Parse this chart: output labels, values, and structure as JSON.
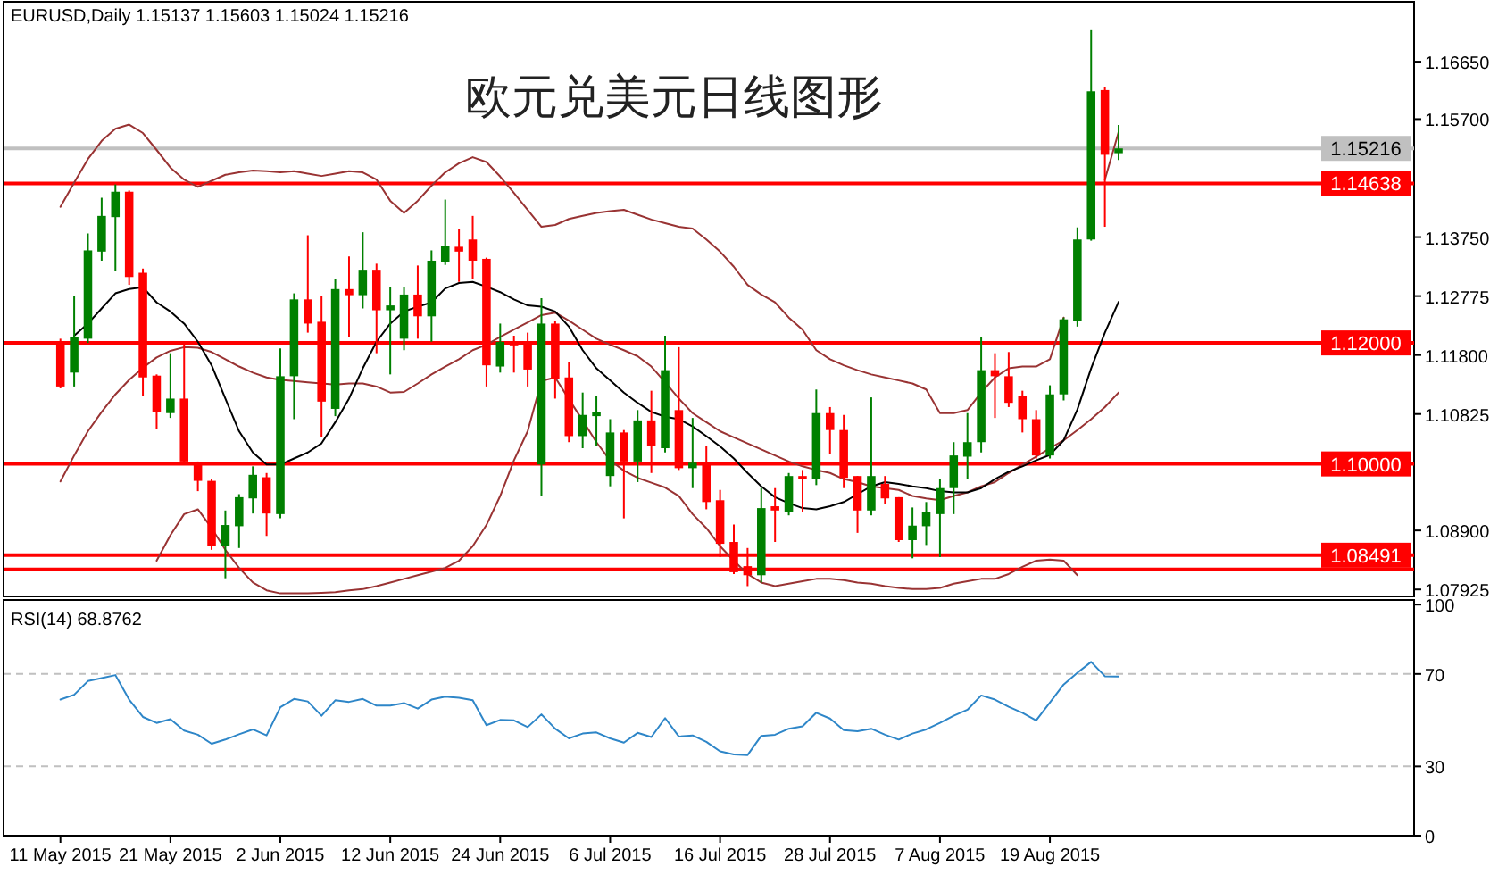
{
  "chart_data": [
    {
      "type": "candlestick",
      "title": "欧元兑美元日线图形",
      "subtitle": "EURUSD,Daily 1.15137 1.15603 1.15024 1.15216",
      "tick_labels": "y",
      "categories": [
        null,
        null,
        null,
        null,
        null,
        null,
        null,
        null,
        null,
        null,
        null,
        null,
        null,
        null,
        null,
        null,
        null,
        null,
        null,
        null,
        null,
        null,
        null,
        null,
        null,
        null,
        null,
        null,
        null,
        null,
        null,
        null,
        null,
        null,
        null,
        null,
        null,
        null,
        null,
        null,
        null,
        null,
        null,
        null,
        null,
        null,
        null,
        null,
        null,
        null,
        null,
        null,
        null,
        null,
        null,
        null,
        null,
        null,
        null,
        null,
        null,
        null,
        null,
        null,
        null,
        null,
        null,
        null,
        null,
        null,
        null,
        null,
        null,
        null,
        null,
        null,
        null,
        null
      ],
      "ohlc": [
        [
          1.1202,
          1.1207,
          1.1125,
          1.1128
        ],
        [
          1.1151,
          1.1277,
          1.1128,
          1.121
        ],
        [
          1.1207,
          1.1381,
          1.12,
          1.1353
        ],
        [
          1.1351,
          1.144,
          1.1336,
          1.141
        ],
        [
          1.1408,
          1.1462,
          1.1319,
          1.145
        ],
        [
          1.145,
          1.1452,
          1.1296,
          1.1309
        ],
        [
          1.1316,
          1.1323,
          1.1113,
          1.1143
        ],
        [
          1.1146,
          1.1148,
          1.1058,
          1.1086
        ],
        [
          1.1084,
          1.1183,
          1.1076,
          1.1108
        ],
        [
          1.1108,
          1.1202,
          1.1002,
          1.1004
        ],
        [
          1.0999,
          1.1004,
          1.0955,
          1.0972
        ],
        [
          1.0972,
          1.0975,
          1.0858,
          1.0864
        ],
        [
          1.0864,
          1.0923,
          1.0811,
          1.0899
        ],
        [
          1.0897,
          1.095,
          1.0861,
          1.0945
        ],
        [
          1.0943,
          1.0996,
          1.0918,
          1.0982
        ],
        [
          1.0978,
          1.0985,
          1.0881,
          1.0918
        ],
        [
          1.0917,
          1.1191,
          1.091,
          1.1145
        ],
        [
          1.1145,
          1.1282,
          1.1074,
          1.1272
        ],
        [
          1.1272,
          1.1378,
          1.1217,
          1.1232
        ],
        [
          1.1235,
          1.1277,
          1.1044,
          1.1103
        ],
        [
          1.1091,
          1.1306,
          1.1079,
          1.1289
        ],
        [
          1.1289,
          1.1343,
          1.121,
          1.1279
        ],
        [
          1.1279,
          1.1383,
          1.1257,
          1.1321
        ],
        [
          1.1321,
          1.1331,
          1.1183,
          1.1254
        ],
        [
          1.1254,
          1.1293,
          1.1148,
          1.1262
        ],
        [
          1.1207,
          1.1292,
          1.1188,
          1.128
        ],
        [
          1.128,
          1.1328,
          1.1207,
          1.1244
        ],
        [
          1.1244,
          1.1353,
          1.1202,
          1.1336
        ],
        [
          1.1334,
          1.1437,
          1.1329,
          1.1361
        ],
        [
          1.1359,
          1.1389,
          1.1301,
          1.1351
        ],
        [
          1.1371,
          1.141,
          1.1306,
          1.1336
        ],
        [
          1.1339,
          1.1341,
          1.1128,
          1.1163
        ],
        [
          1.1161,
          1.1232,
          1.1151,
          1.1202
        ],
        [
          1.1202,
          1.1212,
          1.1151,
          1.1196
        ],
        [
          1.12,
          1.1217,
          1.1128,
          1.1156
        ],
        [
          1.0999,
          1.1274,
          1.0947,
          1.1232
        ],
        [
          1.1232,
          1.1237,
          1.1108,
          1.1141
        ],
        [
          1.1143,
          1.1168,
          1.1036,
          1.1046
        ],
        [
          1.1046,
          1.1118,
          1.1026,
          1.1081
        ],
        [
          1.1079,
          1.1113,
          1.1029,
          1.1086
        ],
        [
          1.098,
          1.1074,
          1.0963,
          1.1052
        ],
        [
          1.1052,
          1.1056,
          1.091,
          1.1004
        ],
        [
          1.1004,
          1.1089,
          1.097,
          1.1072
        ],
        [
          1.1072,
          1.1121,
          1.0985,
          1.1029
        ],
        [
          1.1026,
          1.1212,
          1.1019,
          1.1155
        ],
        [
          1.1089,
          1.1193,
          1.099,
          1.0993
        ],
        [
          1.0993,
          1.1076,
          1.096,
          1.1002
        ],
        [
          1.1002,
          1.1029,
          1.0925,
          1.0937
        ],
        [
          1.094,
          1.0957,
          1.0846,
          1.0868
        ],
        [
          1.0871,
          1.09,
          1.0818,
          1.0821
        ],
        [
          1.0831,
          1.0861,
          1.0798,
          1.0816
        ],
        [
          1.0816,
          1.096,
          1.0804,
          1.0927
        ],
        [
          1.093,
          1.096,
          1.0871,
          1.0923
        ],
        [
          1.092,
          1.0985,
          1.0915,
          1.098
        ],
        [
          1.098,
          1.099,
          1.092,
          1.0975
        ],
        [
          1.0975,
          1.1123,
          1.0965,
          1.1084
        ],
        [
          1.1084,
          1.1094,
          1.1016,
          1.1056
        ],
        [
          1.1056,
          1.1081,
          1.096,
          1.0977
        ],
        [
          1.098,
          1.098,
          1.0886,
          1.0923
        ],
        [
          1.0923,
          1.111,
          1.0915,
          1.098
        ],
        [
          1.0967,
          1.098,
          1.0933,
          1.0943
        ],
        [
          1.0945,
          1.0945,
          1.0871,
          1.0874
        ],
        [
          1.0874,
          1.0928,
          1.0844,
          1.0898
        ],
        [
          1.0897,
          1.0937,
          1.0866,
          1.092
        ],
        [
          1.0917,
          1.0975,
          1.0846,
          1.096
        ],
        [
          1.096,
          1.1036,
          1.0917,
          1.1014
        ],
        [
          1.1012,
          1.1084,
          1.0975,
          1.1036
        ],
        [
          1.1036,
          1.121,
          1.1019,
          1.1155
        ],
        [
          1.1155,
          1.1183,
          1.1076,
          1.1145
        ],
        [
          1.1145,
          1.1185,
          1.1094,
          1.1101
        ],
        [
          1.1113,
          1.1121,
          1.1052,
          1.1074
        ],
        [
          1.1074,
          1.1089,
          1.1009,
          1.1014
        ],
        [
          1.1014,
          1.113,
          1.1009,
          1.1115
        ],
        [
          1.1115,
          1.1242,
          1.1105,
          1.1239
        ],
        [
          1.1237,
          1.1391,
          1.1227,
          1.1371
        ],
        [
          1.1371,
          1.1717,
          1.1369,
          1.1616
        ],
        [
          1.1618,
          1.1623,
          1.1392,
          1.1511
        ],
        [
          1.15137,
          1.15603,
          1.15024,
          1.15216
        ]
      ],
      "series": [
        {
          "type": "line",
          "color": "#993333",
          "values": [
            1.1425,
            1.1465,
            1.1504,
            1.1534,
            1.1554,
            1.1561,
            1.1547,
            1.1519,
            1.149,
            1.147,
            1.1458,
            1.1468,
            1.1478,
            1.1482,
            1.1485,
            1.1484,
            1.1482,
            1.1484,
            1.148,
            1.1476,
            1.148,
            1.1484,
            1.1482,
            1.147,
            1.1435,
            1.1415,
            1.1435,
            1.146,
            1.1482,
            1.1497,
            1.1507,
            1.1499,
            1.1475,
            1.1448,
            1.142,
            1.1392,
            1.1395,
            1.1405,
            1.141,
            1.1415,
            1.1418,
            1.142,
            1.1412,
            1.1404,
            1.1398,
            1.1392,
            1.1389,
            1.1371,
            1.1351,
            1.1326,
            1.1296,
            1.128,
            1.1267,
            1.1242,
            1.1222,
            1.1188,
            1.1173,
            1.1163,
            1.1155,
            1.1148,
            1.1143,
            1.1138,
            1.1133,
            1.1123,
            1.1084,
            1.1084,
            1.1089,
            1.1118,
            1.1143,
            1.1158,
            1.1161,
            1.1161,
            1.1173,
            1.1242,
            null,
            null,
            1.147,
            1.1549
          ]
        },
        {
          "type": "line",
          "color": "#993333",
          "values": [
            1.0971,
            1.1014,
            1.1054,
            1.1086,
            1.1115,
            1.1139,
            1.1159,
            1.1176,
            1.1187,
            1.1193,
            1.1192,
            1.1185,
            1.1173,
            1.1161,
            1.1151,
            1.1143,
            1.1139,
            1.1137,
            1.1135,
            1.1133,
            1.1131,
            1.1133,
            1.1133,
            1.1128,
            1.1118,
            1.1119,
            1.1133,
            1.1148,
            1.1161,
            1.1173,
            1.1188,
            1.1197,
            1.121,
            1.1222,
            1.1234,
            1.1246,
            1.125,
            1.1237,
            1.1222,
            1.1207,
            1.1197,
            1.1188,
            1.1178,
            1.1161,
            1.1135,
            1.1108,
            1.1084,
            1.1069,
            1.1054,
            1.1044,
            1.1034,
            1.1024,
            1.1014,
            1.1004,
            1.0996,
            1.099,
            1.0985,
            1.0975,
            1.097,
            1.0963,
            1.096,
            1.0957,
            1.0947,
            1.0943,
            1.094,
            1.0947,
            1.0953,
            1.0963,
            1.097,
            1.0985,
            1.0999,
            1.1012,
            1.1026,
            1.1039,
            1.1056,
            1.1074,
            1.1094,
            1.1118
          ]
        },
        {
          "type": "line",
          "color": "#993333",
          "values": [
            null,
            null,
            null,
            null,
            null,
            null,
            null,
            1.084,
            1.0882,
            1.0917,
            1.0925,
            1.0894,
            1.0858,
            1.0828,
            1.0804,
            1.0791,
            1.0786,
            1.0786,
            1.0786,
            1.0787,
            1.0788,
            1.0791,
            1.0793,
            1.0798,
            1.0804,
            1.081,
            1.0816,
            1.0822,
            1.0828,
            1.084,
            1.0864,
            1.0899,
            1.0947,
            1.1006,
            1.1054,
            1.1137,
            1.1143,
            1.1107,
            1.1072,
            1.1036,
            1.1006,
            1.0989,
            1.0977,
            1.0969,
            1.0961,
            1.0947,
            1.0917,
            1.0894,
            1.0864,
            1.084,
            1.0818,
            1.0804,
            1.0798,
            1.0802,
            1.0806,
            1.081,
            1.081,
            1.0808,
            1.0804,
            1.0802,
            1.0798,
            1.0795,
            1.0793,
            1.0793,
            1.0795,
            1.0802,
            1.0806,
            1.081,
            1.081,
            1.0818,
            1.083,
            1.084,
            1.0842,
            1.084,
            1.0816,
            null,
            null,
            null
          ]
        },
        {
          "type": "line",
          "color": "#000000",
          "values": [
            null,
            1.1212,
            1.1232,
            1.1257,
            1.1282,
            1.1289,
            1.1292,
            1.1267,
            1.1252,
            1.1232,
            1.1202,
            1.1163,
            1.1108,
            1.1054,
            1.1019,
            1.0999,
            1.0999,
            1.1009,
            1.1019,
            1.1034,
            1.1069,
            1.1108,
            1.1158,
            1.1202,
            1.1232,
            1.1252,
            1.126,
            1.1267,
            1.129,
            1.1299,
            1.1301,
            1.1293,
            1.1284,
            1.1272,
            1.1262,
            1.126,
            1.1252,
            1.1227,
            1.1188,
            1.1158,
            1.1138,
            1.1118,
            1.1101,
            1.1086,
            1.1078,
            1.1074,
            1.1062,
            1.1046,
            1.1029,
            1.1009,
            1.0985,
            1.0963,
            1.0945,
            1.0935,
            1.0927,
            1.0925,
            1.093,
            1.0937,
            1.095,
            1.0963,
            1.097,
            1.0967,
            1.0963,
            1.096,
            1.0955,
            1.0953,
            1.0953,
            1.096,
            1.0975,
            1.0987,
            1.0996,
            1.1006,
            1.1015,
            1.1039,
            1.109,
            1.1158,
            1.1217,
            1.1268
          ]
        }
      ],
      "ylim": [
        1.0781,
        1.1764
      ],
      "yticks": [
        {
          "value": 1.1665,
          "label": "1.16650"
        },
        {
          "value": 1.157,
          "label": "1.15700"
        },
        {
          "value": 1.1375,
          "label": "1.13750"
        },
        {
          "value": 1.12775,
          "label": "1.12775"
        },
        {
          "value": 1.118,
          "label": "1.11800"
        },
        {
          "value": 1.10825,
          "label": "1.10825"
        },
        {
          "value": 1.089,
          "label": "1.08900"
        },
        {
          "value": 1.07925,
          "label": "1.07925"
        }
      ],
      "ref_lines": [
        {
          "axis": "y",
          "value": 1.15216,
          "label": "1.15216",
          "color": "#c0c0c0"
        },
        {
          "axis": "y",
          "value": 1.14638,
          "label": "1.14638",
          "color": "#ff0000"
        },
        {
          "axis": "y",
          "value": 1.12,
          "label": "1.12000",
          "color": "#ff0000"
        },
        {
          "axis": "y",
          "value": 1.1,
          "label": "1.10000",
          "color": "#ff0000"
        },
        {
          "axis": "y",
          "value": 1.08491,
          "label": "1.08491",
          "color": "#ff0000"
        },
        {
          "axis": "y",
          "value": 1.08255,
          "color": "#ff0000"
        }
      ]
    },
    {
      "type": "line",
      "title": "RSI(14) 68.8762",
      "categories": [
        "11 May 2015",
        null,
        null,
        null,
        null,
        null,
        null,
        null,
        "21 May 2015",
        null,
        null,
        null,
        null,
        null,
        null,
        null,
        "2 Jun 2015",
        null,
        null,
        null,
        null,
        null,
        null,
        null,
        "12 Jun 2015",
        null,
        null,
        null,
        null,
        null,
        null,
        null,
        "24 Jun 2015",
        null,
        null,
        null,
        null,
        null,
        null,
        null,
        "6 Jul 2015",
        null,
        null,
        null,
        null,
        null,
        null,
        null,
        "16 Jul 2015",
        null,
        null,
        null,
        null,
        null,
        null,
        null,
        "28 Jul 2015",
        null,
        null,
        null,
        null,
        null,
        null,
        null,
        "7 Aug 2015",
        null,
        null,
        null,
        null,
        null,
        null,
        null,
        "19 Aug 2015",
        null,
        null,
        null,
        null,
        null
      ],
      "series": [
        {
          "color": "#2e86c8",
          "values": [
            58.9,
            61.0,
            66.9,
            68.2,
            69.5,
            58.9,
            51.4,
            48.8,
            50.4,
            45.5,
            43.7,
            39.8,
            41.6,
            43.9,
            46.0,
            43.4,
            55.6,
            59.2,
            58.1,
            51.9,
            58.6,
            57.9,
            59.2,
            56.3,
            56.3,
            57.4,
            55.0,
            58.9,
            60.2,
            59.7,
            58.6,
            47.8,
            50.1,
            49.9,
            47.0,
            52.5,
            46.3,
            42.1,
            44.2,
            44.7,
            42.1,
            40.3,
            44.5,
            42.7,
            50.9,
            42.9,
            43.4,
            40.6,
            36.5,
            35.2,
            34.9,
            43.2,
            43.7,
            46.3,
            47.3,
            53.2,
            50.7,
            45.7,
            45.2,
            46.3,
            43.7,
            41.6,
            44.2,
            46.0,
            48.8,
            51.9,
            54.5,
            60.7,
            58.9,
            55.8,
            53.2,
            49.9,
            57.6,
            65.4,
            70.5,
            75.2,
            69.0,
            68.9
          ]
        }
      ],
      "ylim": [
        0,
        102
      ],
      "yticks": [
        0,
        30,
        70,
        100
      ],
      "ref_lines": [
        {
          "axis": "y",
          "value": 70,
          "color": "#c0c0c0",
          "line_style": "dashed"
        },
        {
          "axis": "y",
          "value": 30,
          "color": "#c0c0c0",
          "line_style": "dashed"
        }
      ]
    }
  ]
}
